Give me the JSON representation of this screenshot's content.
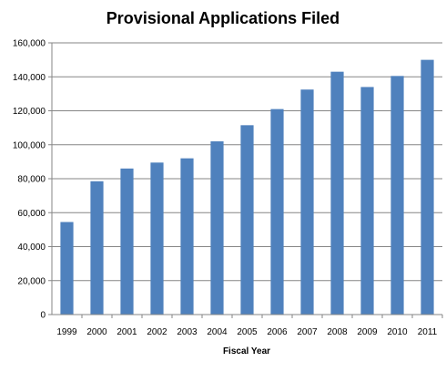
{
  "chart_data": {
    "type": "bar",
    "title": "Provisional Applications Filed",
    "xlabel": "Fiscal Year",
    "ylabel": "",
    "categories": [
      "1999",
      "2000",
      "2001",
      "2002",
      "2003",
      "2004",
      "2005",
      "2006",
      "2007",
      "2008",
      "2009",
      "2010",
      "2011"
    ],
    "values": [
      54500,
      78500,
      86000,
      89500,
      92000,
      102000,
      111500,
      121000,
      132500,
      143000,
      134000,
      140500,
      150000
    ],
    "ylim": [
      0,
      160000
    ],
    "yticks": [
      0,
      20000,
      40000,
      60000,
      80000,
      100000,
      120000,
      140000,
      160000
    ],
    "ytick_labels": [
      "0",
      "20,000",
      "40,000",
      "60,000",
      "80,000",
      "100,000",
      "120,000",
      "140,000",
      "160,000"
    ],
    "grid": true,
    "legend": "none",
    "bar_color": "#4f81bd"
  }
}
